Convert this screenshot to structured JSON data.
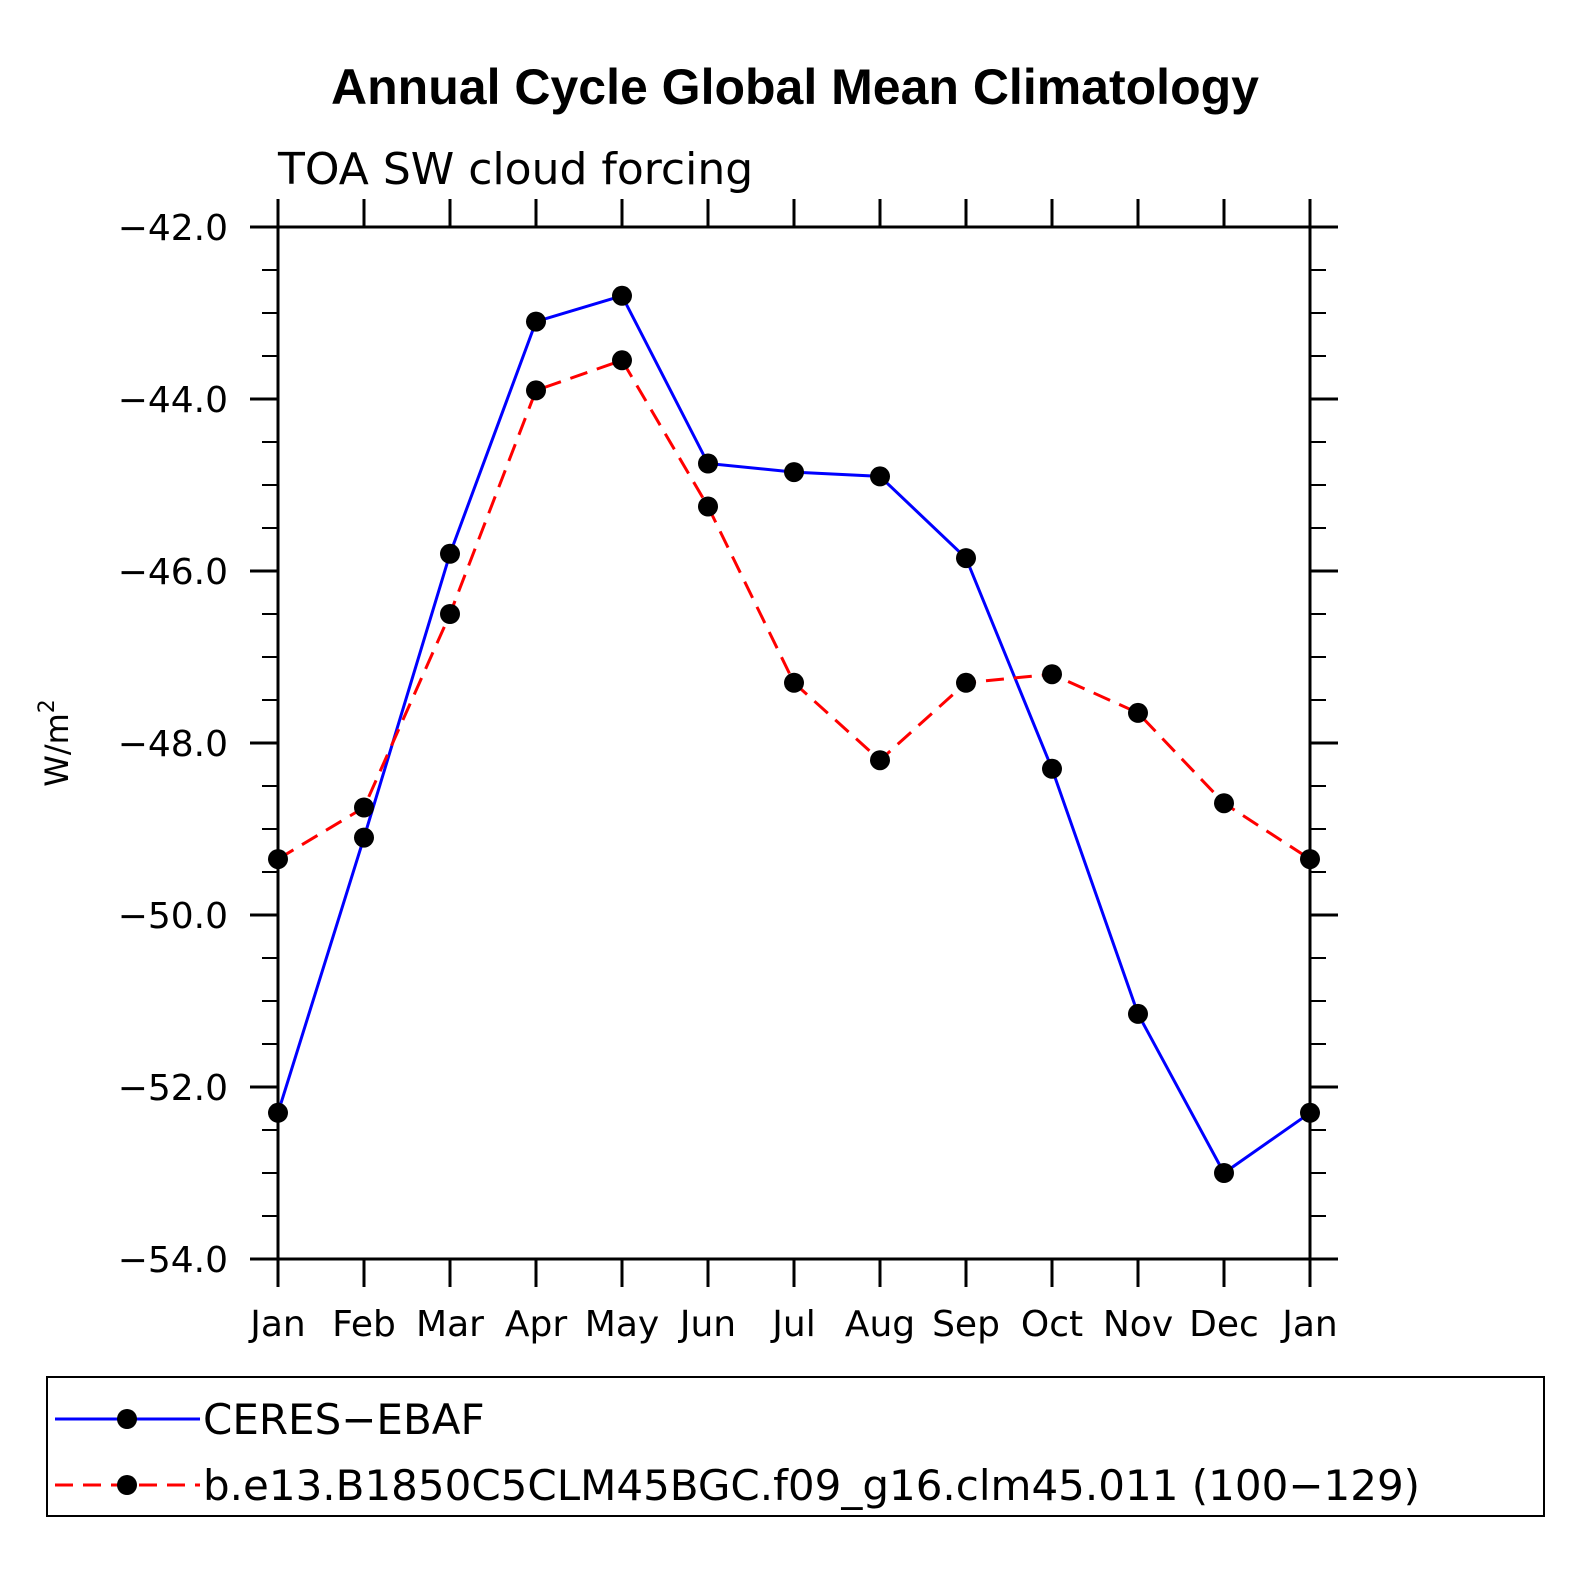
{
  "chart_data": {
    "type": "line",
    "title": "Annual Cycle Global Mean Climatology",
    "subtitle": "TOA SW cloud forcing",
    "ylabel": "W/m",
    "ylabel_superscript": "2",
    "xlabel": "",
    "ylim": [
      -54.0,
      -42.0
    ],
    "yticks": [
      -42.0,
      -44.0,
      -46.0,
      -48.0,
      -50.0,
      -52.0,
      -54.0
    ],
    "ytick_labels": [
      "−42.0",
      "−44.0",
      "−46.0",
      "−48.0",
      "−50.0",
      "−52.0",
      "−54.0"
    ],
    "categories": [
      "Jan",
      "Feb",
      "Mar",
      "Apr",
      "May",
      "Jun",
      "Jul",
      "Aug",
      "Sep",
      "Oct",
      "Nov",
      "Dec",
      "Jan"
    ],
    "series": [
      {
        "name": "CERES−EBAF",
        "color": "#0000ff",
        "dash": "solid",
        "values": [
          -52.3,
          -49.1,
          -45.8,
          -43.1,
          -42.8,
          -44.75,
          -44.85,
          -44.9,
          -45.85,
          -48.3,
          -51.15,
          -53.0,
          -52.3
        ]
      },
      {
        "name": "b.e13.B1850C5CLM45BGC.f09_g16.clm45.011 (100−129)",
        "color": "#ff0000",
        "dash": "dashed",
        "values": [
          -49.35,
          -48.75,
          -46.5,
          -43.9,
          -43.55,
          -45.25,
          -47.3,
          -48.2,
          -47.3,
          -47.2,
          -47.65,
          -48.7,
          -49.35
        ]
      }
    ],
    "grid": false,
    "legend_position": "bottom"
  }
}
